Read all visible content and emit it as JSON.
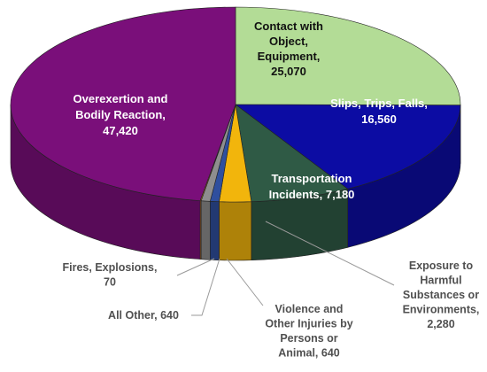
{
  "chart_data": {
    "type": "pie",
    "title": "",
    "start_category": "Contact with Object, Equipment",
    "slices": [
      {
        "id": "contact",
        "label_lines": [
          "Contact with",
          "Object,",
          "Equipment,",
          "25,070"
        ],
        "value": 25070,
        "color": "#b3dc96",
        "label_color": "#111111"
      },
      {
        "id": "slips",
        "label_lines": [
          "Slips, Trips, Falls,",
          "16,560"
        ],
        "value": 16560,
        "color": "#0c0ca3",
        "label_color": "#ffffff"
      },
      {
        "id": "transport",
        "label_lines": [
          "Transportation",
          "Incidents,  7,180"
        ],
        "value": 7180,
        "color": "#2f5a45",
        "label_color": "#ffffff"
      },
      {
        "id": "exposure",
        "label_lines": [
          "Exposure to",
          "Harmful",
          "Substances or",
          "Environments,",
          "2,280"
        ],
        "value": 2280,
        "color": "#f2b50c",
        "label_color": "#555555"
      },
      {
        "id": "violence",
        "label_lines": [
          "Violence and",
          "Other Injuries by",
          "Persons or",
          "Animal,  640"
        ],
        "value": 640,
        "color": "#2f4f9e",
        "label_color": "#555555"
      },
      {
        "id": "other",
        "label_lines": [
          "All Other,  640"
        ],
        "value": 640,
        "color": "#8e8e8e",
        "label_color": "#555555"
      },
      {
        "id": "fires",
        "label_lines": [
          "Fires, Explosions,",
          "70"
        ],
        "value": 70,
        "color": "#e58a1f",
        "label_color": "#555555"
      },
      {
        "id": "overexertion",
        "label_lines": [
          "Overexertion and",
          "Bodily Reaction,",
          "47,420"
        ],
        "value": 47420,
        "color": "#7a0f7a",
        "label_color": "#ffffff"
      }
    ]
  }
}
